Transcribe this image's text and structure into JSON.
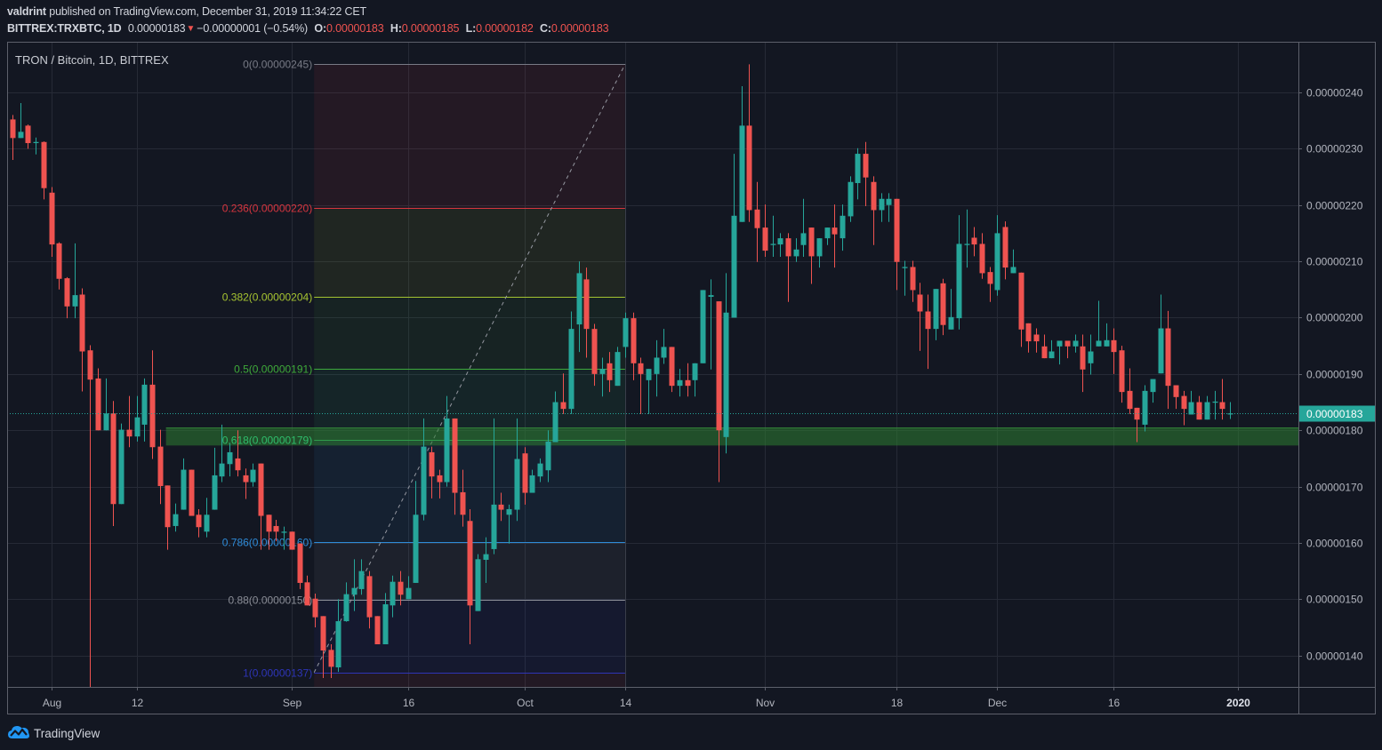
{
  "header": {
    "author": "valdrint",
    "published_text": "published on TradingView.com, December 31, 2019 11:34:22 CET",
    "symbol": "BITTREX:TRXBTC, 1D",
    "last_price": "0.00000183",
    "change_arrow": "▼",
    "change": "−0.00000001 (−0.54%)",
    "ohlc": {
      "o_label": "O:",
      "o": "0.00000183",
      "h_label": "H:",
      "h": "0.00000185",
      "l_label": "L:",
      "l": "0.00000182",
      "c_label": "C:",
      "c": "0.00000183"
    }
  },
  "chart": {
    "title": "TRON / Bitcoin, 1D, BITTREX"
  },
  "footer": {
    "logo_text": "TradingView",
    "logo_icon": "tradingview-cloud-icon"
  },
  "colors": {
    "background": "#131722",
    "grid": "#262a36",
    "frame": "#5d606b",
    "up": "#26a69a",
    "down": "#ef5350",
    "axis_text": "#b2b5be",
    "price_label_bg": "#26a69a",
    "zone_fill": "#2e7d32",
    "zone_border": "#3a9a40",
    "trend_line": "#9598a1",
    "logo_blue": "#2196f3"
  },
  "chart_data": {
    "type": "candlestick",
    "title": "TRON / Bitcoin, 1D, BITTREX",
    "symbol": "BITTREX:TRXBTC",
    "interval": "1D",
    "value_unit": "1e-8 BTC (0.00000001)",
    "x_start": "2019-07-27",
    "x_end": "2019-12-31",
    "ylim": [
      134,
      250
    ],
    "grid": true,
    "y_ticks": [
      {
        "value": 240,
        "label": "0.00000240"
      },
      {
        "value": 230,
        "label": "0.00000230"
      },
      {
        "value": 220,
        "label": "0.00000220"
      },
      {
        "value": 210,
        "label": "0.00000210"
      },
      {
        "value": 200,
        "label": "0.00000200"
      },
      {
        "value": 190,
        "label": "0.00000190"
      },
      {
        "value": 180,
        "label": "0.00000180"
      },
      {
        "value": 170,
        "label": "0.00000170"
      },
      {
        "value": 160,
        "label": "0.00000160"
      },
      {
        "value": 150,
        "label": "0.00000150"
      },
      {
        "value": 140,
        "label": "0.00000140"
      }
    ],
    "x_ticks": [
      {
        "label": "Aug",
        "index": 5
      },
      {
        "label": "12",
        "index": 16
      },
      {
        "label": "Sep",
        "index": 36
      },
      {
        "label": "16",
        "index": 51
      },
      {
        "label": "Oct",
        "index": 66
      },
      {
        "label": "14",
        "index": 79
      },
      {
        "label": "Nov",
        "index": 97
      },
      {
        "label": "18",
        "index": 114
      },
      {
        "label": "Dec",
        "index": 127
      },
      {
        "label": "16",
        "index": 142
      },
      {
        "label": "2020",
        "index": 158,
        "emphasis": true
      }
    ],
    "current_price": 183,
    "current_price_label": "0.00000183",
    "support_zone": {
      "from_index": 19.8,
      "top": 180.5,
      "bottom": 177.3
    },
    "fib": {
      "high": 245,
      "low": 137,
      "from_index": 38.9,
      "to_index": 79,
      "extension_color": "#f23645",
      "levels": [
        {
          "ratio": 0,
          "label": "0(0.00000245)",
          "color": "#787b86"
        },
        {
          "ratio": 0.236,
          "label": "0.236(0.00000220)",
          "color": "#d7353f"
        },
        {
          "ratio": 0.382,
          "label": "0.382(0.00000204)",
          "color": "#a6c431"
        },
        {
          "ratio": 0.5,
          "label": "0.5(0.00000191)",
          "color": "#3faa3a"
        },
        {
          "ratio": 0.618,
          "label": "0.618(0.00000179)",
          "color": "#2fbd6b"
        },
        {
          "ratio": 0.786,
          "label": "0.786(0.00000160)",
          "color": "#2e8bd8"
        },
        {
          "ratio": 0.88,
          "label": "0.88(0.00000150)",
          "color": "#8a8d96"
        },
        {
          "ratio": 1,
          "label": "1(0.00000137)",
          "color": "#2e35b8"
        }
      ]
    },
    "ohlc_columns": [
      "open",
      "high",
      "low",
      "close"
    ],
    "candles": [
      [
        235.2,
        236,
        228,
        231.9
      ],
      [
        231.9,
        238.1,
        231.9,
        233
      ],
      [
        234.1,
        234.3,
        230,
        231
      ],
      [
        231,
        232,
        229,
        231.2
      ],
      [
        231.2,
        231.3,
        221,
        223
      ],
      [
        222.2,
        223.2,
        210.8,
        213
      ],
      [
        213.2,
        213.4,
        205,
        206.9
      ],
      [
        207,
        207.2,
        199.9,
        202
      ],
      [
        202,
        213.2,
        199.9,
        204
      ],
      [
        204.1,
        205.2,
        186.9,
        194
      ],
      [
        194.2,
        195.1,
        134,
        189
      ],
      [
        189.2,
        191,
        180,
        180
      ],
      [
        180,
        189.2,
        180,
        183
      ],
      [
        183,
        185.2,
        163,
        166.9
      ],
      [
        166.9,
        181.2,
        166.9,
        180.1
      ],
      [
        180.1,
        186.1,
        177,
        178.9
      ],
      [
        178.9,
        186.1,
        178,
        182.3
      ],
      [
        181,
        189.2,
        178,
        188.1
      ],
      [
        188.1,
        194.2,
        174.9,
        177
      ],
      [
        177.1,
        180.1,
        166.9,
        170.1
      ],
      [
        170.2,
        170.2,
        158.8,
        162.8
      ],
      [
        163,
        167,
        162,
        165.1
      ],
      [
        165.9,
        175,
        165.9,
        173
      ],
      [
        173,
        173,
        164.8,
        164.8
      ],
      [
        165,
        166,
        161,
        162.8
      ],
      [
        162,
        168,
        161,
        165
      ],
      [
        165.9,
        176.9,
        165.9,
        172
      ],
      [
        171.8,
        181,
        170.8,
        174.1
      ],
      [
        174,
        177.6,
        171.8,
        176.1
      ],
      [
        175,
        180,
        171.8,
        172.9
      ],
      [
        172,
        173.2,
        167.8,
        170.8
      ],
      [
        170.8,
        174.1,
        170,
        173
      ],
      [
        174.1,
        174.1,
        158.8,
        164.8
      ],
      [
        165,
        165,
        158.8,
        162
      ],
      [
        163,
        164.1,
        160.3,
        162
      ],
      [
        161.8,
        162.9,
        158.8,
        162
      ],
      [
        162,
        162,
        158.8,
        158.8
      ],
      [
        159.9,
        159.9,
        151.8,
        152.9
      ],
      [
        153,
        154.2,
        148.9,
        148.9
      ],
      [
        150.1,
        151,
        145,
        146.8
      ],
      [
        147,
        147,
        136,
        140.9
      ],
      [
        141,
        142,
        136,
        138
      ],
      [
        137.9,
        150,
        137.1,
        146.1
      ],
      [
        146.1,
        153,
        146,
        150.9
      ],
      [
        150.8,
        157.1,
        147.9,
        152
      ],
      [
        151.8,
        157.1,
        150.8,
        155
      ],
      [
        154.1,
        155,
        144.8,
        146.8
      ],
      [
        147,
        147,
        142,
        142
      ],
      [
        142,
        151.1,
        142,
        149.1
      ],
      [
        148.9,
        154.2,
        146.8,
        153.1
      ],
      [
        153.1,
        155,
        148.9,
        150.8
      ],
      [
        150,
        154.1,
        150,
        152
      ],
      [
        152.9,
        171,
        152.9,
        165
      ],
      [
        165,
        182.1,
        164,
        177.1
      ],
      [
        176.1,
        177.1,
        167.9,
        171.8
      ],
      [
        172,
        173,
        167.9,
        170.8
      ],
      [
        170.8,
        186.1,
        170,
        182.1
      ],
      [
        182.1,
        182.1,
        165,
        168.9
      ],
      [
        169,
        173,
        162.9,
        165
      ],
      [
        163.9,
        166,
        142,
        148.9
      ],
      [
        147.9,
        158,
        147.9,
        157.1
      ],
      [
        157,
        161,
        152.9,
        158
      ],
      [
        158.9,
        182.1,
        158,
        166.8
      ],
      [
        166.8,
        168.9,
        163.9,
        165.9
      ],
      [
        165,
        166.8,
        159.9,
        166
      ],
      [
        165.9,
        182.1,
        163.9,
        174.9
      ],
      [
        175.9,
        177,
        166.8,
        168.9
      ],
      [
        168.9,
        173,
        168.9,
        172
      ],
      [
        171.8,
        175,
        170.8,
        174.1
      ],
      [
        172.9,
        180,
        170.8,
        178
      ],
      [
        177.9,
        186.9,
        177.9,
        185
      ],
      [
        185,
        190.1,
        182.9,
        183.8
      ],
      [
        183.8,
        201.1,
        182.9,
        198
      ],
      [
        198.8,
        210,
        193.9,
        207.9
      ],
      [
        206.8,
        208.9,
        192.9,
        198
      ],
      [
        198,
        198.9,
        187.9,
        190
      ],
      [
        190,
        192.9,
        186,
        190.9
      ],
      [
        191.9,
        193.9,
        186.8,
        188.9
      ],
      [
        187.9,
        194.8,
        187.9,
        193.9
      ],
      [
        194.8,
        200.9,
        192.9,
        199.9
      ],
      [
        199.9,
        200.9,
        188.9,
        191.9
      ],
      [
        191.9,
        192.9,
        182.9,
        190
      ],
      [
        188.9,
        190.9,
        182.9,
        190.9
      ],
      [
        190,
        196,
        186,
        192.9
      ],
      [
        192.9,
        198,
        191.8,
        194.8
      ],
      [
        194.8,
        194.8,
        186.8,
        187.9
      ],
      [
        187.9,
        190.9,
        186,
        188.9
      ],
      [
        188.9,
        191.9,
        186,
        187.9
      ],
      [
        188.9,
        191.9,
        186,
        191.9
      ],
      [
        191.9,
        204.9,
        191.9,
        204.9
      ],
      [
        203.7,
        206.8,
        190.8,
        204
      ],
      [
        202.9,
        202.9,
        170.8,
        180
      ],
      [
        178.8,
        207.9,
        175.9,
        200.9
      ],
      [
        200,
        229.1,
        200,
        218.1
      ],
      [
        217,
        241.1,
        217,
        234.1
      ],
      [
        234.1,
        245,
        217,
        219.1
      ],
      [
        219.2,
        224.1,
        209.9,
        215.9
      ],
      [
        216,
        220.1,
        210.8,
        211.9
      ],
      [
        212.9,
        218.1,
        210.8,
        213.1
      ],
      [
        213,
        215,
        210.8,
        214.1
      ],
      [
        214.1,
        215,
        202.8,
        210.9
      ],
      [
        210.9,
        214.1,
        209.9,
        212.1
      ],
      [
        212.9,
        221.1,
        210.8,
        215
      ],
      [
        216,
        216,
        206,
        210.9
      ],
      [
        210.9,
        214.1,
        208.9,
        214.1
      ],
      [
        214.1,
        216,
        212.9,
        216
      ],
      [
        216,
        220.1,
        208.9,
        214.8
      ],
      [
        214.1,
        220.1,
        211.9,
        218.1
      ],
      [
        218,
        225.1,
        217,
        224.1
      ],
      [
        223.9,
        230.1,
        221,
        229.1
      ],
      [
        229.1,
        231.2,
        219.8,
        224.9
      ],
      [
        224.1,
        225.1,
        212.9,
        219.1
      ],
      [
        219.1,
        222.1,
        217,
        221.1
      ],
      [
        220,
        222.1,
        217,
        221.1
      ],
      [
        221.1,
        221.1,
        204.9,
        209.9
      ],
      [
        208.8,
        210.1,
        203.9,
        209
      ],
      [
        209,
        210.1,
        202.8,
        204.9
      ],
      [
        204.1,
        206.2,
        194.1,
        201.1
      ],
      [
        201.1,
        204.1,
        190.9,
        198
      ],
      [
        198,
        205.1,
        196,
        205.1
      ],
      [
        206.1,
        206.9,
        196.9,
        198.7
      ],
      [
        197.9,
        205.1,
        197.9,
        200.1
      ],
      [
        199.9,
        218.2,
        197.9,
        213.1
      ],
      [
        212.9,
        219.2,
        208.9,
        213.1
      ],
      [
        214.2,
        216.1,
        210.9,
        213
      ],
      [
        213.1,
        215,
        206.9,
        207.9
      ],
      [
        208.1,
        209,
        202.8,
        206
      ],
      [
        204.9,
        218.2,
        203.9,
        215
      ],
      [
        216.1,
        217.1,
        206.8,
        208.9
      ],
      [
        207.9,
        212.1,
        207.9,
        209
      ],
      [
        208,
        208,
        194.8,
        197.9
      ],
      [
        199,
        199,
        193.8,
        195.8
      ],
      [
        197,
        198.1,
        193.8,
        195.8
      ],
      [
        194.9,
        197,
        192.8,
        192.8
      ],
      [
        192.8,
        196,
        192.8,
        194
      ],
      [
        194.9,
        195.9,
        191.7,
        195.9
      ],
      [
        195.9,
        195.9,
        192.8,
        194.9
      ],
      [
        194.9,
        197,
        193.8,
        195.9
      ],
      [
        194.9,
        197,
        186.8,
        190.8
      ],
      [
        191.9,
        197,
        189.9,
        194
      ],
      [
        194.9,
        203,
        194.9,
        195.9
      ],
      [
        194.9,
        199,
        194.9,
        196
      ],
      [
        196,
        198.1,
        190,
        193.9
      ],
      [
        194.2,
        195,
        184.9,
        186.8
      ],
      [
        187,
        191,
        182.9,
        183.8
      ],
      [
        184,
        184,
        177.9,
        181.9
      ],
      [
        181,
        188,
        179.8,
        187
      ],
      [
        186.8,
        189.1,
        184.9,
        189.1
      ],
      [
        190.1,
        204.1,
        190.1,
        198.1
      ],
      [
        198.1,
        201.2,
        183.8,
        187.9
      ],
      [
        188,
        188,
        183.8,
        185.9
      ],
      [
        186.1,
        187,
        180.9,
        183.8
      ],
      [
        182.8,
        187,
        182.8,
        185
      ],
      [
        185,
        186.1,
        181.9,
        181.9
      ],
      [
        181.9,
        186.1,
        181.9,
        185
      ],
      [
        184.9,
        187,
        181.9,
        185.1
      ],
      [
        185,
        189.1,
        181.9,
        183.8
      ],
      [
        183,
        185,
        182,
        183
      ]
    ]
  }
}
